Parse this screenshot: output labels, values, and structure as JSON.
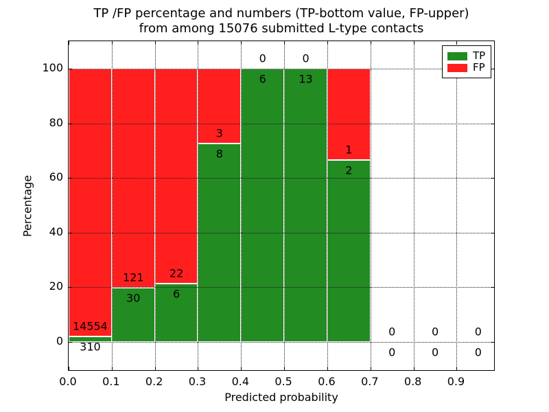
{
  "title": {
    "line1": "TP /FP percentage and numbers (TP-bottom value, FP-upper)",
    "line2": "from among 15076 submitted L-type contacts"
  },
  "axes": {
    "ylabel": "Percentage",
    "xlabel": "Predicted probability",
    "yticks": [
      0,
      20,
      40,
      60,
      80,
      100
    ],
    "xticks": [
      "0.0",
      "0.1",
      "0.2",
      "0.3",
      "0.4",
      "0.5",
      "0.6",
      "0.7",
      "0.8",
      "0.9"
    ],
    "ylim": [
      -11,
      110
    ],
    "xlim": [
      0.0,
      0.99
    ],
    "grid": true
  },
  "legend": {
    "position": "upper-right",
    "items": [
      {
        "label": "TP",
        "color": "#228b22"
      },
      {
        "label": "FP",
        "color": "#ff1f1f"
      }
    ]
  },
  "colors": {
    "tp": "#228b22",
    "fp": "#ff1f1f",
    "bar_edge": "#ffffff",
    "frame": "#000000",
    "background": "#ffffff"
  },
  "chart_data": {
    "type": "bar",
    "stacked": true,
    "normalized_to": 100,
    "total_contacts": 15076,
    "bin_width": 0.1,
    "note": "TP count shown below segment boundary, FP count above; green = TP percent of bin, red = FP percent of bin",
    "bins": [
      {
        "x0": 0.0,
        "x1": 0.1,
        "tp": 310,
        "fp": 14554,
        "tp_pct": 2.09
      },
      {
        "x0": 0.1,
        "x1": 0.2,
        "tp": 30,
        "fp": 121,
        "tp_pct": 19.87
      },
      {
        "x0": 0.2,
        "x1": 0.3,
        "tp": 6,
        "fp": 22,
        "tp_pct": 21.43
      },
      {
        "x0": 0.3,
        "x1": 0.4,
        "tp": 8,
        "fp": 3,
        "tp_pct": 72.73
      },
      {
        "x0": 0.4,
        "x1": 0.5,
        "tp": 6,
        "fp": 0,
        "tp_pct": 100
      },
      {
        "x0": 0.5,
        "x1": 0.6,
        "tp": 13,
        "fp": 0,
        "tp_pct": 100
      },
      {
        "x0": 0.6,
        "x1": 0.7,
        "tp": 2,
        "fp": 1,
        "tp_pct": 66.67
      },
      {
        "x0": 0.7,
        "x1": 0.8,
        "tp": 0,
        "fp": 0,
        "tp_pct": null
      },
      {
        "x0": 0.8,
        "x1": 0.9,
        "tp": 0,
        "fp": 0,
        "tp_pct": null
      },
      {
        "x0": 0.9,
        "x1": 1.0,
        "tp": 0,
        "fp": 0,
        "tp_pct": null
      }
    ]
  }
}
